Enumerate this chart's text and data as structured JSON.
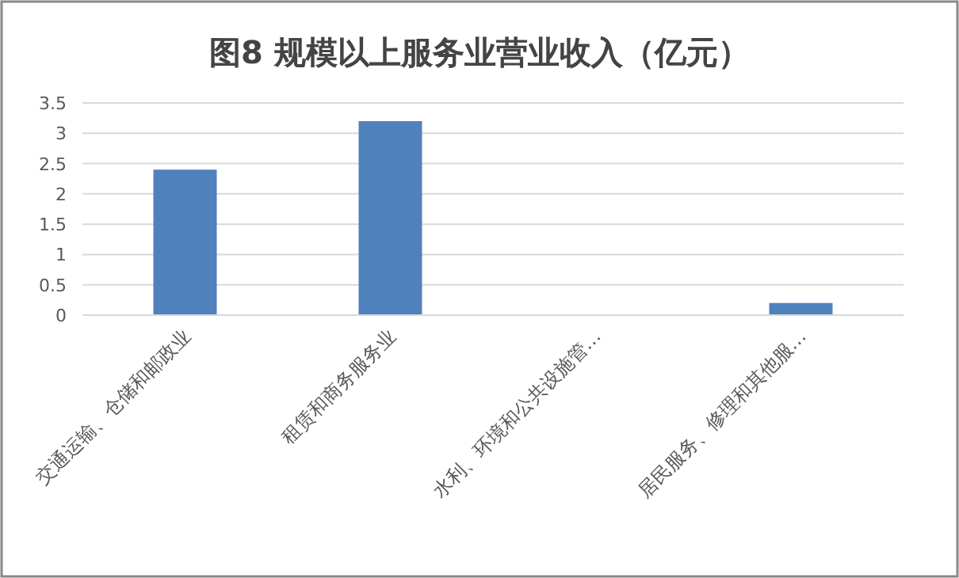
{
  "chart_data": {
    "type": "bar",
    "title": "图8 规模以上服务业营业收入（亿元）",
    "categories": [
      "交通运输、仓储和邮政业",
      "租赁和商务服务业",
      "水利、环境和公共设施管…",
      "居民服务、修理和其他服…"
    ],
    "values": [
      2.4,
      3.2,
      0,
      0.2
    ],
    "color": "#4f81bd",
    "ylim": [
      0,
      3.5
    ],
    "yticks": [
      0,
      0.5,
      1,
      1.5,
      2,
      2.5,
      3,
      3.5
    ],
    "grid": "y"
  }
}
